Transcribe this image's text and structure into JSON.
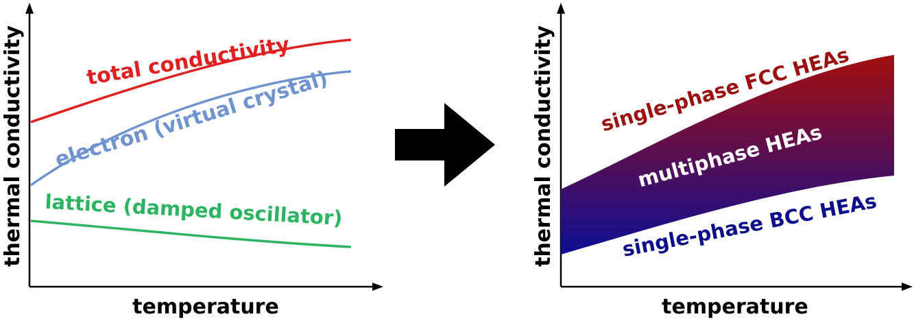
{
  "left_panel": {
    "y_axis_label": "thermal conductivity",
    "x_axis_label": "temperature",
    "curves": [
      {
        "label": "total conductivity",
        "color": "#e02020"
      },
      {
        "label": "electron (virtual crystal)",
        "color": "#6f93cf"
      },
      {
        "label": "lattice (damped oscillator)",
        "color": "#2db463"
      }
    ]
  },
  "transition_arrow": {
    "color": "#000000"
  },
  "right_panel": {
    "y_axis_label": "thermal conductivity",
    "x_axis_label": "temperature",
    "band": {
      "top_color": "#a30f0f",
      "bottom_color": "#0d0f94"
    },
    "labels": {
      "upper": {
        "text": "single-phase FCC HEAs",
        "color": "#9b1010"
      },
      "middle": {
        "text": "multiphase HEAs",
        "color": "#ffffff"
      },
      "lower": {
        "text": "single-phase BCC HEAs",
        "color": "#0d0f8a"
      }
    }
  }
}
